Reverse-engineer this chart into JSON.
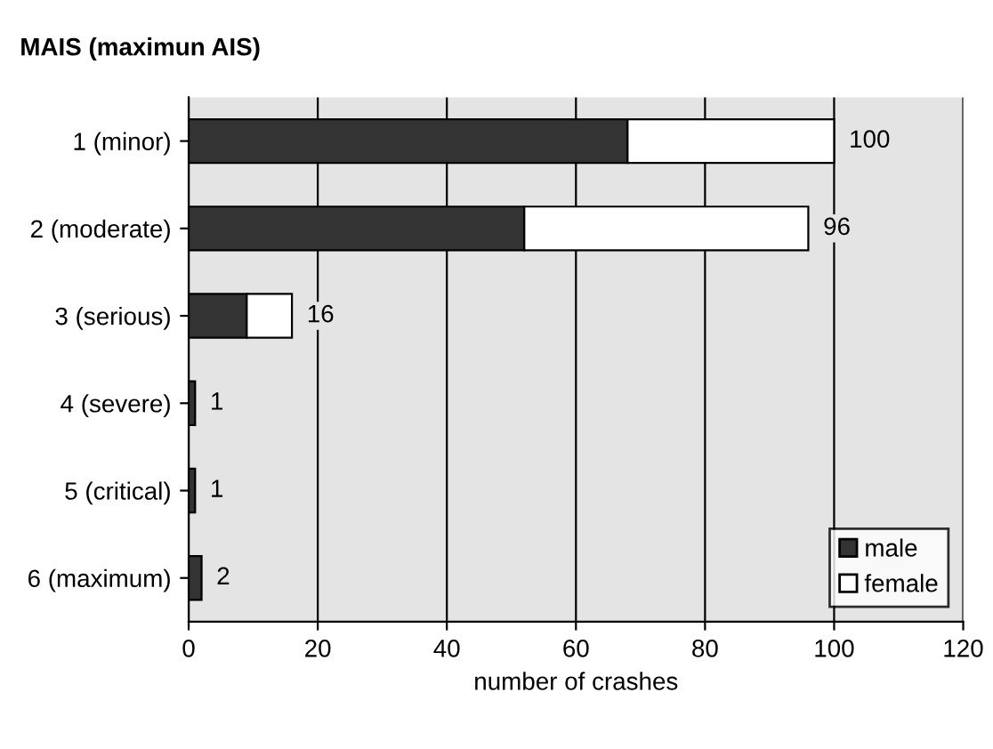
{
  "chart_data": {
    "type": "bar",
    "title": "MAIS (maximun AIS)",
    "xlabel": "number of crashes",
    "orientation": "horizontal",
    "stacked": true,
    "categories": [
      "1 (minor)",
      "2 (moderate)",
      "3 (serious)",
      "4 (severe)",
      "5 (critical)",
      "6 (maximum)"
    ],
    "series": [
      {
        "name": "male",
        "color": "#333333",
        "values": [
          68,
          52,
          9,
          1,
          1,
          2
        ]
      },
      {
        "name": "female",
        "color": "#ffffff",
        "values": [
          32,
          44,
          7,
          null,
          null,
          null
        ]
      }
    ],
    "totals": [
      "100",
      "96",
      "16",
      "1",
      "1",
      "2"
    ],
    "xlim": [
      0,
      120
    ],
    "xticks": [
      0,
      20,
      40,
      60,
      80,
      100,
      120
    ],
    "grid": "x",
    "legend": "bottom right"
  }
}
